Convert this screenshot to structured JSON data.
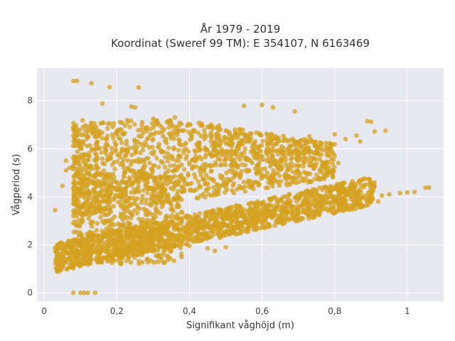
{
  "chart_data": {
    "type": "scatter",
    "title_line1": "År 1979 - 2019",
    "title_line2": "Koordinat (Sweref 99 TM): E 354107, N 6163469",
    "xlabel": "Signifikant våghöjd (m)",
    "ylabel": "Vågperiod (s)",
    "xlim": [
      -0.02,
      1.1
    ],
    "ylim": [
      -0.35,
      9.35
    ],
    "x_ticks": [
      {
        "value": 0,
        "label": "0"
      },
      {
        "value": 0.2,
        "label": "0,2"
      },
      {
        "value": 0.4,
        "label": "0,4"
      },
      {
        "value": 0.6,
        "label": "0,6"
      },
      {
        "value": 0.8,
        "label": "0,8"
      },
      {
        "value": 1,
        "label": "1"
      }
    ],
    "y_ticks": [
      {
        "value": 0,
        "label": "0"
      },
      {
        "value": 2,
        "label": "2"
      },
      {
        "value": 4,
        "label": "4"
      },
      {
        "value": 6,
        "label": "6"
      },
      {
        "value": 8,
        "label": "8"
      }
    ],
    "grid": true,
    "marker_color": "#d4a220",
    "plot_bg": "#e8e8f0",
    "points": [
      [
        0.08,
        8.82
      ],
      [
        0.09,
        8.82
      ],
      [
        0.13,
        8.72
      ],
      [
        0.18,
        8.56
      ],
      [
        0.26,
        8.55
      ],
      [
        0.16,
        7.88
      ],
      [
        0.25,
        7.72
      ],
      [
        0.24,
        7.75
      ],
      [
        0.55,
        7.78
      ],
      [
        0.6,
        7.82
      ],
      [
        0.63,
        7.72
      ],
      [
        0.69,
        7.55
      ],
      [
        0.89,
        7.15
      ],
      [
        0.9,
        7.12
      ],
      [
        0.94,
        6.75
      ],
      [
        0.91,
        6.72
      ],
      [
        0.86,
        6.55
      ],
      [
        0.83,
        6.4
      ],
      [
        0.8,
        6.6
      ],
      [
        0.87,
        6.3
      ],
      [
        0.79,
        6.18
      ],
      [
        0.73,
        6.52
      ],
      [
        0.69,
        6.3
      ],
      [
        0.8,
        5.7
      ],
      [
        0.81,
        5.4
      ],
      [
        0.06,
        5.1
      ],
      [
        0.06,
        5.5
      ],
      [
        0.07,
        5.2
      ],
      [
        0.03,
        3.45
      ],
      [
        0.05,
        4.45
      ],
      [
        0.08,
        2.9
      ],
      [
        0.09,
        2.85
      ],
      [
        0.14,
        6.5
      ],
      [
        0.12,
        6.7
      ],
      [
        0.17,
        5.9
      ],
      [
        0.35,
        7.02
      ],
      [
        0.4,
        7.0
      ],
      [
        0.45,
        6.9
      ],
      [
        0.5,
        6.75
      ],
      [
        0.55,
        6.4
      ],
      [
        0.64,
        6.2
      ],
      [
        0.66,
        6.0
      ],
      [
        0.7,
        5.85
      ],
      [
        0.72,
        5.6
      ],
      [
        0.75,
        5.8
      ],
      [
        0.52,
        5.3
      ],
      [
        0.5,
        4.5
      ],
      [
        0.48,
        4.2
      ],
      [
        0.46,
        4.05
      ],
      [
        0.42,
        4.3
      ],
      [
        0.85,
        4.32
      ],
      [
        0.88,
        4.4
      ],
      [
        0.9,
        4.2
      ],
      [
        0.93,
        4.05
      ],
      [
        0.95,
        4.1
      ],
      [
        0.98,
        4.15
      ],
      [
        1.0,
        4.18
      ],
      [
        1.02,
        4.2
      ],
      [
        1.05,
        4.38
      ],
      [
        1.06,
        4.38
      ],
      [
        0.92,
        3.8
      ],
      [
        0.9,
        3.78
      ],
      [
        0.86,
        3.75
      ],
      [
        0.8,
        3.7
      ],
      [
        0.82,
        3.95
      ],
      [
        0.63,
        3.95
      ],
      [
        0.66,
        4.0
      ],
      [
        0.7,
        4.1
      ],
      [
        0.74,
        4.3
      ],
      [
        0.78,
        4.35
      ],
      [
        0.45,
        1.85
      ],
      [
        0.5,
        1.9
      ],
      [
        0.4,
        1.95
      ],
      [
        0.35,
        1.8
      ],
      [
        0.47,
        1.75
      ],
      [
        0.56,
        3.0
      ],
      [
        0.6,
        3.2
      ],
      [
        0.58,
        2.9
      ],
      [
        0.62,
        3.4
      ],
      [
        0.67,
        3.6
      ],
      [
        0.12,
        0.0
      ],
      [
        0.1,
        0.0
      ],
      [
        0.08,
        0.0
      ],
      [
        0.14,
        0.0
      ],
      [
        0.11,
        0.0
      ],
      [
        0.15,
        3.5
      ],
      [
        0.18,
        4.0
      ],
      [
        0.22,
        4.6
      ],
      [
        0.27,
        5.1
      ],
      [
        0.31,
        5.6
      ],
      [
        0.2,
        6.6
      ],
      [
        0.23,
        7.1
      ],
      [
        0.3,
        7.25
      ],
      [
        0.36,
        7.3
      ],
      [
        0.33,
        6.8
      ]
    ]
  }
}
